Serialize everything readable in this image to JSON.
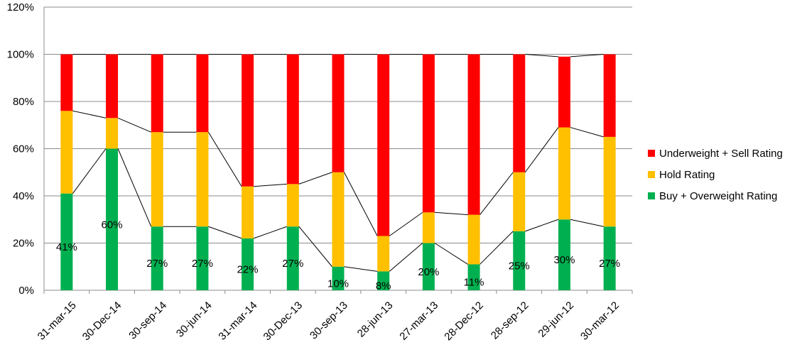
{
  "chart_data": {
    "type": "bar",
    "stacked": true,
    "categories": [
      "31-mar-15",
      "30-Dec-14",
      "30-sep-14",
      "30-jun-14",
      "31-mar-14",
      "30-Dec-13",
      "30-sep-13",
      "28-jun-13",
      "27-mar-13",
      "28-Dec-12",
      "28-sep-12",
      "29-jun-12",
      "30-mar-12"
    ],
    "series": [
      {
        "name": "Buy + Overweight Rating",
        "color": "#00b050",
        "values": [
          41,
          60,
          27,
          27,
          22,
          27,
          10,
          8,
          20,
          11,
          25,
          30,
          27
        ]
      },
      {
        "name": "Hold Rating",
        "color": "#ffc000",
        "values": [
          35,
          13,
          40,
          40,
          22,
          18,
          40,
          15,
          13,
          21,
          25,
          39,
          38
        ]
      },
      {
        "name": "Underweight + Sell Rating",
        "color": "#ff0000",
        "values": [
          24,
          27,
          33,
          33,
          56,
          55,
          50,
          77,
          67,
          68,
          50,
          30,
          35
        ]
      }
    ],
    "data_labels": [
      "41%",
      "60%",
      "27%",
      "27%",
      "22%",
      "27%",
      "10%",
      "8%",
      "20%",
      "11%",
      "25%",
      "30%",
      "27%"
    ],
    "y_ticks": [
      "0%",
      "20%",
      "40%",
      "60%",
      "80%",
      "100%",
      "120%"
    ],
    "ylim": [
      0,
      120
    ],
    "grid": true,
    "legend_position": "right",
    "series_lines": true,
    "legend_order": [
      "Underweight + Sell Rating",
      "Hold Rating",
      "Buy + Overweight Rating"
    ]
  }
}
